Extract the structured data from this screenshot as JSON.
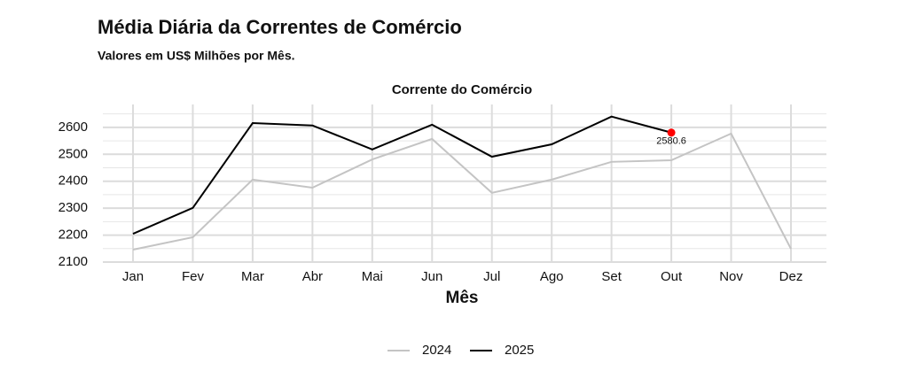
{
  "chart_data": {
    "type": "line",
    "title": "Média Diária da Correntes de Comércio",
    "subtitle": "Valores em US$ Milhões por Mês.",
    "panel_title": "Corrente do Comércio",
    "x_label": "Mês",
    "categories": [
      "Jan",
      "Fev",
      "Mar",
      "Abr",
      "Mai",
      "Jun",
      "Jul",
      "Ago",
      "Set",
      "Out",
      "Nov",
      "Dez"
    ],
    "series": [
      {
        "name": "2024",
        "color": "#c4c4c4",
        "values": [
          2146,
          2192,
          2406,
          2376,
          2481,
          2557,
          2357,
          2406,
          2472,
          2478,
          2577,
          2149
        ]
      },
      {
        "name": "2025",
        "color": "#000000",
        "values": [
          2205,
          2301,
          2616,
          2607,
          2518,
          2610,
          2491,
          2537,
          2640,
          2580.6,
          null,
          null
        ]
      }
    ],
    "highlight": {
      "series": 1,
      "index": 9,
      "color": "#ff0000"
    },
    "ylim": [
      2100,
      2685
    ],
    "yticks": [
      2100,
      2200,
      2300,
      2400,
      2500,
      2600
    ],
    "grid": true,
    "legend": "bottom"
  }
}
